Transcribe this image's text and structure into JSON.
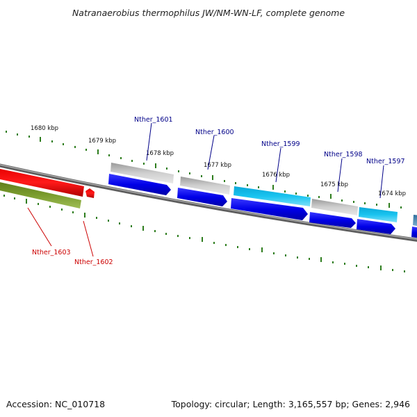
{
  "title": "Natranaerobius thermophilus JW/NM-WN-LF, complete genome",
  "footer": {
    "accession": "Accession: NC_010718",
    "summary": "Topology: circular; Length: 3,165,557 bp; Genes: 2,946"
  },
  "colors": {
    "backbone": "#777777",
    "ticks": "#2e7d1e",
    "label_highlight": "#cc0000",
    "label_normal": "#000088"
  },
  "kbp_labels": [
    {
      "text": "1680 kbp"
    },
    {
      "text": "1679 kbp"
    },
    {
      "text": "1678 kbp"
    },
    {
      "text": "1677 kbp"
    },
    {
      "text": "1676 kbp"
    },
    {
      "text": "1675 kbp"
    },
    {
      "text": "1674 kbp"
    }
  ],
  "gene_labels": [
    {
      "text": "Nther_1601",
      "highlight": false
    },
    {
      "text": "Nther_1600",
      "highlight": false
    },
    {
      "text": "Nther_1599",
      "highlight": false
    },
    {
      "text": "Nther_1598",
      "highlight": false
    },
    {
      "text": "Nther_1597",
      "highlight": false
    },
    {
      "text": "Nther_1603",
      "highlight": true
    },
    {
      "text": "Nther_1602",
      "highlight": true
    }
  ]
}
